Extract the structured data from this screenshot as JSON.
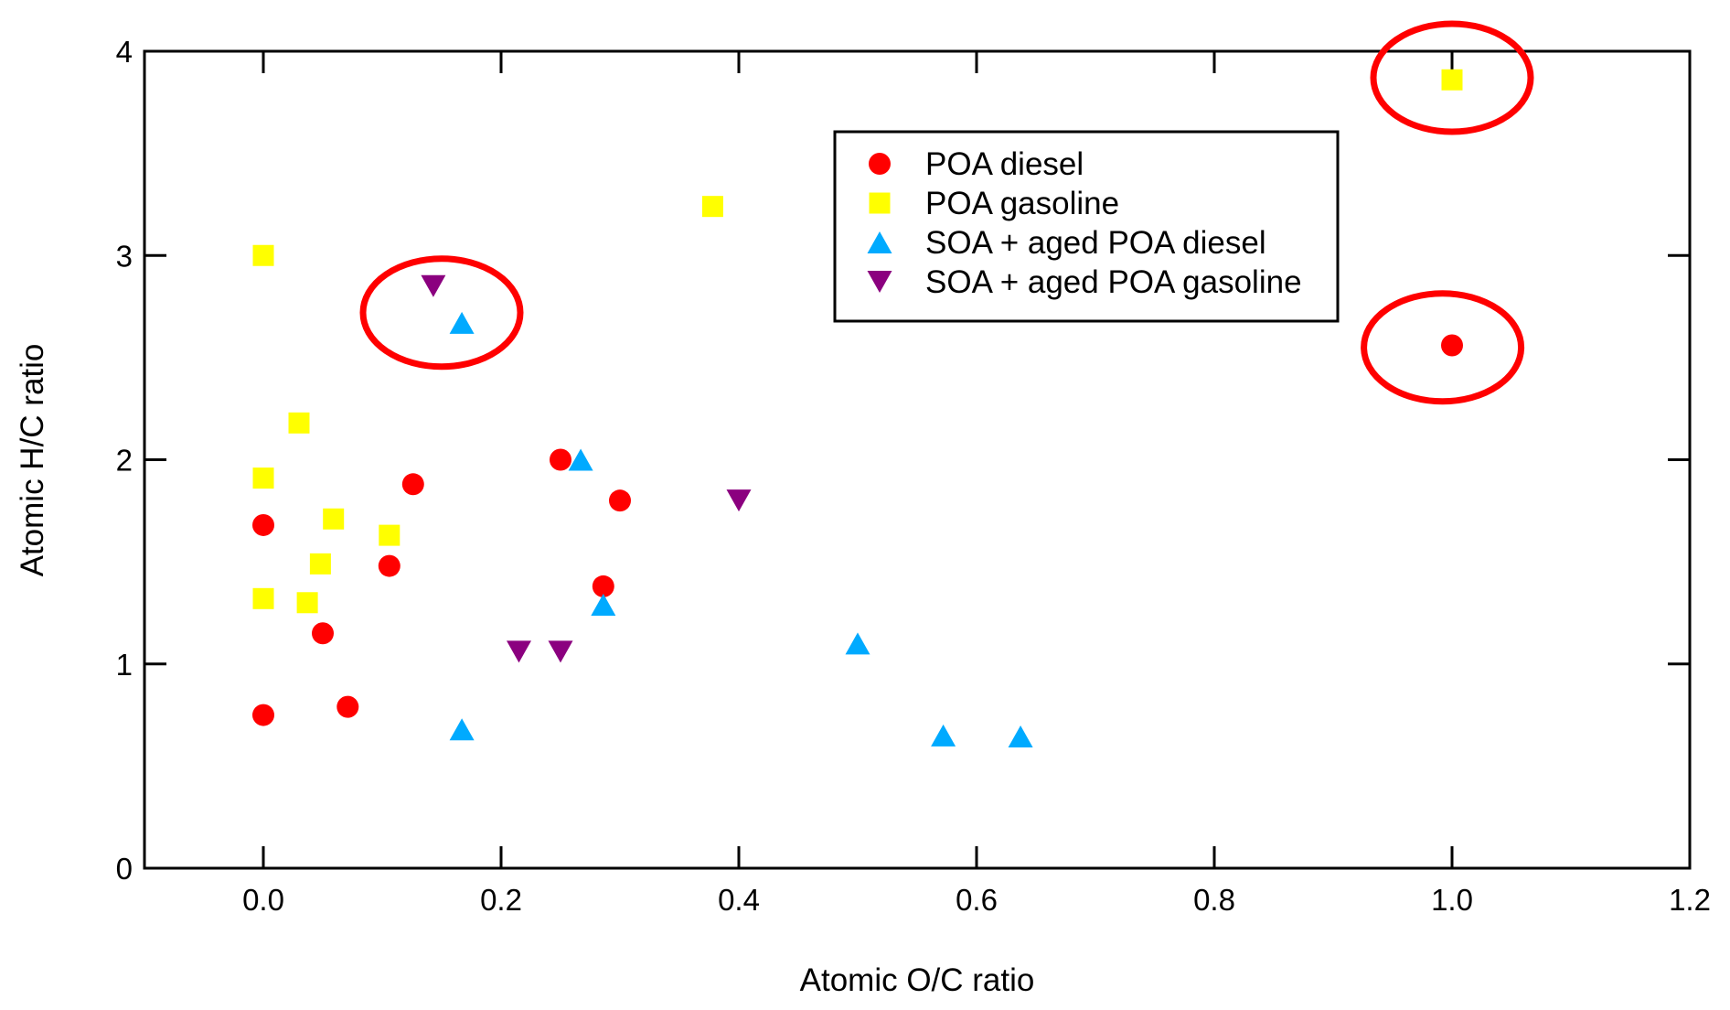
{
  "chart_data": {
    "type": "scatter",
    "title": "",
    "xlabel": "Atomic O/C ratio",
    "ylabel": "Atomic H/C ratio",
    "xlim": [
      -0.1,
      1.2
    ],
    "ylim": [
      0,
      4
    ],
    "xticks": [
      0.0,
      0.2,
      0.4,
      0.6,
      0.8,
      1.0,
      1.2
    ],
    "xtick_labels": [
      "0.0",
      "0.2",
      "0.4",
      "0.6",
      "0.8",
      "1.0",
      "1.2"
    ],
    "yticks": [
      0,
      1,
      2,
      3,
      4
    ],
    "ytick_labels": [
      "0",
      "1",
      "2",
      "3",
      "4"
    ],
    "grid": false,
    "legend_position": "top-center-right",
    "series": [
      {
        "name": "POA diesel",
        "marker": "circle",
        "color": "#ff0000",
        "points": [
          [
            0.0,
            1.68
          ],
          [
            0.0,
            0.75
          ],
          [
            0.05,
            1.15
          ],
          [
            0.071,
            0.79
          ],
          [
            0.106,
            1.48
          ],
          [
            0.126,
            1.88
          ],
          [
            0.25,
            2.0
          ],
          [
            0.3,
            1.8
          ],
          [
            0.286,
            1.38
          ],
          [
            1.0,
            2.56
          ]
        ]
      },
      {
        "name": "POA gasoline",
        "marker": "square",
        "color": "#ffff00",
        "points": [
          [
            0.0,
            3.0
          ],
          [
            0.03,
            2.18
          ],
          [
            0.0,
            1.91
          ],
          [
            0.059,
            1.71
          ],
          [
            0.106,
            1.63
          ],
          [
            0.048,
            1.49
          ],
          [
            0.0,
            1.32
          ],
          [
            0.037,
            1.3
          ],
          [
            0.378,
            3.24
          ],
          [
            1.0,
            3.86
          ]
        ]
      },
      {
        "name": "SOA + aged POA diesel",
        "marker": "triangle-up",
        "color": "#00aaff",
        "points": [
          [
            0.167,
            2.67
          ],
          [
            0.267,
            2.0
          ],
          [
            0.286,
            1.29
          ],
          [
            0.5,
            1.1
          ],
          [
            0.167,
            0.68
          ],
          [
            0.572,
            0.65
          ],
          [
            0.637,
            0.645
          ]
        ]
      },
      {
        "name": "SOA + aged POA gasoline",
        "marker": "triangle-down",
        "color": "#8b007f",
        "points": [
          [
            0.143,
            2.85
          ],
          [
            0.4,
            1.8
          ],
          [
            0.215,
            1.06
          ],
          [
            0.25,
            1.06
          ]
        ]
      }
    ],
    "annotations": [
      {
        "type": "ellipse",
        "color": "#ff0000",
        "center": [
          0.15,
          2.72
        ]
      },
      {
        "type": "ellipse",
        "color": "#ff0000",
        "center": [
          1.0,
          3.87
        ]
      },
      {
        "type": "ellipse",
        "color": "#ff0000",
        "center": [
          0.992,
          2.55
        ]
      }
    ]
  }
}
